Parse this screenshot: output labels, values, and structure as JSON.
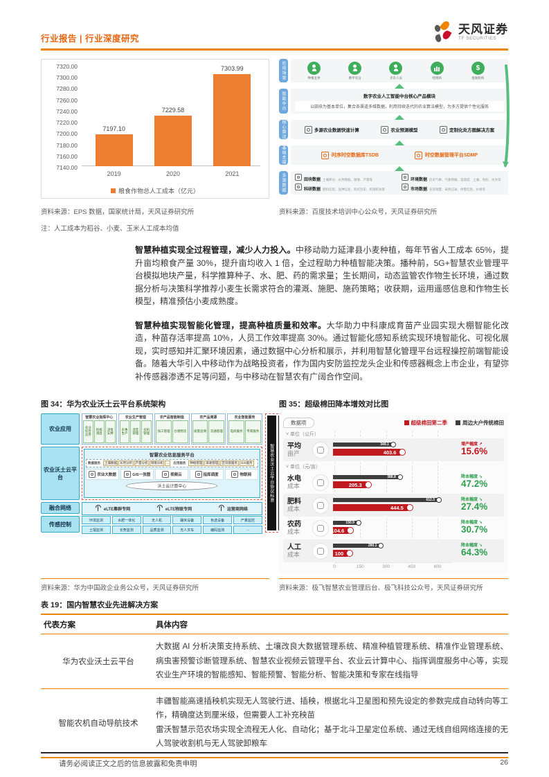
{
  "header": {
    "breadcrumb": "行业报告 | 行业深度研究",
    "brand_cn": "天风证券",
    "brand_en": "TF SECURITIES"
  },
  "chart_data": [
    {
      "type": "bar",
      "categories": [
        "2019",
        "2020",
        "2021"
      ],
      "values": [
        7197.1,
        7229.58,
        7303.99
      ],
      "value_labels": [
        "7197.10",
        "7229.58",
        "7303.99"
      ],
      "legend": [
        "粮食作物总人工成本（亿元）"
      ],
      "ylim": [
        7140,
        7320
      ],
      "ytick_step": 20,
      "bar_color": "#ED7D31",
      "grid": false
    },
    {
      "type": "bar",
      "orientation": "horizontal",
      "title": "超级棉田降本增效对比图",
      "toolbar_button": "数据项",
      "legend": [
        {
          "name": "超级棉田第二季",
          "color": "#C01920"
        },
        {
          "name": "周边大户传统棉田",
          "color": "#3D3D3D"
        }
      ],
      "xticks": [
        0,
        150,
        300,
        450,
        600
      ],
      "xmax": 680,
      "groups": [
        {
          "unit_label": "单位（公斤）",
          "rows": [
            {
              "label_l1": "平均",
              "label_l2": "亩产",
              "icon": "scale-icon",
              "super": 403.6,
              "traditional": 349.1,
              "badge_label": "增产幅度",
              "badge_pct": "15.6%",
              "badge_color": "#C01920",
              "badge_dir": "↗",
              "shaded": true
            }
          ]
        },
        {
          "unit_label": "单位（元/亩）",
          "rows": [
            {
              "label_l1": "水电",
              "label_l2": "成本",
              "icon": "water-icon",
              "super": 205.3,
              "traditional": 388.8,
              "badge_label": "降本幅度",
              "badge_pct": "47.2%",
              "badge_color": "#2F9E4F",
              "badge_dir": "↘",
              "shaded": false
            },
            {
              "label_l1": "肥料",
              "label_l2": "成本",
              "icon": "fertilizer-icon",
              "super": 444.5,
              "traditional": 612.3,
              "badge_label": "降本幅度",
              "badge_pct": "27.4%",
              "badge_color": "#2F9E4F",
              "badge_dir": "↘",
              "shaded": true
            },
            {
              "label_l1": "农药",
              "label_l2": "成本",
              "icon": "pesticide-icon",
              "super": 104.6,
              "traditional": 150.9,
              "badge_label": "降本幅度",
              "badge_pct": "30.7%",
              "badge_color": "#2F9E4F",
              "badge_dir": "↘",
              "shaded": false
            },
            {
              "label_l1": "人工",
              "label_l2": "成本",
              "icon": "worker-icon",
              "super": 100,
              "traditional": 280.1,
              "badge_label": "降本幅度",
              "badge_pct": "64.3%",
              "badge_color": "#2F9E4F",
              "badge_dir": "↘",
              "shaded": true
            }
          ]
        }
      ]
    }
  ],
  "baidu": {
    "side": [
      "应用场景",
      "智能中台",
      "核心算法",
      "基础支撑",
      "多源数据"
    ],
    "scenes": [
      {
        "label": "种植主体",
        "icon": "users-icon"
      },
      {
        "label": "数字农业",
        "icon": "user-icon"
      },
      {
        "label": "涉农人员",
        "icon": "team-icon"
      },
      {
        "label": "经销商",
        "icon": "chart-icon"
      },
      {
        "label": "金融机构",
        "icon": "dollar-icon"
      }
    ],
    "mid_title": "数字农业人工智能中台核心产品模块",
    "mid_text": "以田块为基本单位，集合各渠道多维数据，利用持续迭代的农业算法模型，为多方提供个性化服务",
    "algorithms": [
      "多源农业数据快速计算",
      "农业预测模型",
      "定制化处方图解决方案"
    ],
    "infra": [
      "时序时空数据库TSDB",
      "时空数据管理平台SDMP"
    ],
    "data_sources": [
      {
        "name": "田块数据",
        "desc": "土壤养分、长势数据、植保、产量等"
      },
      {
        "name": "环境数据",
        "desc": "历史气象、气象预报、温湿度、土壤、地形、水文等"
      },
      {
        "name": "科研数据",
        "desc": "肥料信息、品种信息、购买历史、积温积光等"
      },
      {
        "name": "市场数据",
        "desc": "农资销量、采购记录、供需信息、价格等"
      }
    ]
  },
  "sources": {
    "s1": "资料来源：EPS 数据，国家统计局，天风证券研究所",
    "s2": "资料来源：百度技术培训中心公众号，天风证券研究所",
    "note": "注：人工成本为稻谷、小麦、玉米人工成本均值",
    "s3": "资料来源：华为中国政企业务公众号，天风证券研究所",
    "s4": "资料来源：极飞智慧农业管理后台、极飞科技公众号，天风证券研究所"
  },
  "paragraphs": {
    "p1_bold": "智慧种植实现全过程管理，减少人力投入。",
    "p1_text": "中移动助力延津县小麦种植，每年节省人工成本 65%，提升亩均粮食产量 30%，提升亩均收入 1 倍，全过程助力种植智能决策。播种前，5G+智慧农业管理平台模拟地块产量，科学推算种子、水、肥、药的需求量；生长期间，动态监管农作物生长环境，通过数据分析与决策科学推荐小麦生长需求符合的灌溉、施肥、施药策略；收获期，运用遥感信息和作物生长模型，精准预估小麦成熟度。",
    "p2_bold": "智慧种植实现智能化管理，提高种植质量和效率。",
    "p2_text": "大华助力中科康成育苗产业园实现大棚智能化改造，种苗存活率提高 10%，人员工作效率提高 30%。通过智能化感知系统实现环境智能化、可视化展现，实时感知并汇聚环境因素，通过数据中心分析和展示，并利用智慧化管理平台远程操控前端智能设备。随着大华引入中移动作为战略投资者，作为国内安防监控龙头企业和传感器概念上市企业，有望弥补传感器渗透不足等问题，与中移动在智慧农有广阔合作空间。"
  },
  "figures": {
    "fig34_title": "图 34：华为农业沃土云平台系统架构",
    "fig35_title": "图 35：超级棉田降本增效对比图"
  },
  "fig34": {
    "side": [
      "农业应用",
      "农业沃土云平台",
      "融合网络",
      "传感控制"
    ],
    "app_columns": [
      {
        "title": "智慧农业指挥中心",
        "subs": [
          "农业综合态势",
          "指挥调度",
          "决策支撑"
        ]
      },
      {
        "title": "农业生产管理",
        "subs": [
          "农事生产",
          "温室管理",
          "农机管理"
        ]
      },
      {
        "title": "农产品智能制造",
        "subs": [
          "加工管理",
          "仓储物流"
        ]
      },
      {
        "title": "农产品溯源",
        "subs": [
          "质量追溯",
          "流通管理"
        ]
      },
      {
        "title": "农业智能服务",
        "subs": [
          "电商服务",
          "专家服务"
        ]
      }
    ],
    "platform": {
      "header": "智慧农业信息服务平台",
      "data_service_label": "数据服务",
      "data_services": [
        "土壤数据",
        "长势分析",
        "产量分析",
        "墒情分析",
        "…"
      ],
      "app_service_label": "应用服务",
      "app_services": [
        "种植管理",
        "采收管理",
        "区块链服务",
        "GIS服务"
      ],
      "capabilities": [
        "农业大数据",
        "GIS一张图",
        "视频云",
        "指挥调度",
        "物联网"
      ],
      "compute_center": "沃土云计算中心"
    },
    "network": [
      "eLTE集群专网",
      "eLTE物联专网",
      "运营商网络"
    ],
    "sensors_row1": [
      "环境监测",
      "水肥一体化",
      "无人机",
      "碾米设备",
      "色选设备",
      "产量监控"
    ],
    "sensors_row2": [
      "土壤监测",
      "长势监测",
      "品质监测",
      "无人叉车",
      "编码监测",
      "…"
    ],
    "standards": [
      "智慧农业沃土云平台协议标准",
      "智慧农业沃土云平台数据标准"
    ]
  },
  "table": {
    "title": "表 19：国内智慧农业先进解决方案",
    "headers": [
      "代表方案",
      "具体内容"
    ],
    "rows": [
      {
        "name": "华为农业沃土云平台",
        "content": [
          "大数据 AI 分析决策支持系统、土壤改良大数据管理系统、精准种植管理系统、精准作业管理系统、病虫害预警诊断管理系统、智慧农业视频云管理平台、农业云计算中心、指挥调度服务中心等，实现农业生产环境的智能感知、智能预警、智能分析、智能决策和专家在线指导"
        ]
      },
      {
        "name": "智能农机自动导航技术",
        "content": [
          "丰疆智能高速插秧机实现无人驾驶行进、插秧，根据北斗卫星图和预先设定的参数完成自动转向等工作，精确度达到厘米级，但需要人工补充秧苗",
          "雷沃智慧示范农场实现全流程无人化、自动化；基于北斗卫星定位系统、通过无线自组网络连接的无人驾驶收割机与无人驾驶卸粮车"
        ]
      }
    ]
  },
  "footer": {
    "disclaimer": "请务必阅读正文之后的信息披露和免责申明",
    "page_number": "26"
  }
}
